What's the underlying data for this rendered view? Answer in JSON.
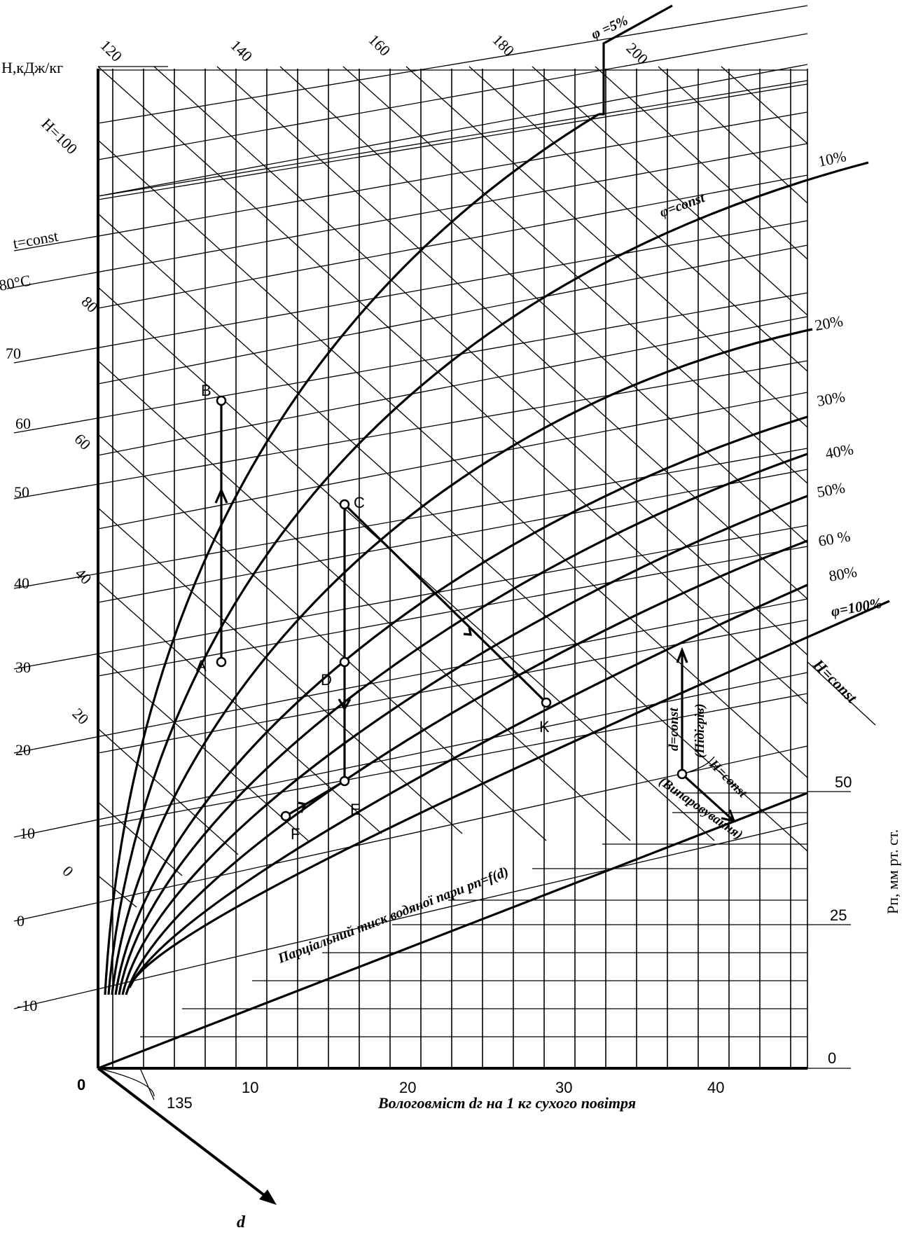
{
  "chart_data": {
    "type": "diagram",
    "diagram_kind": "H-d psychrometric chart",
    "y_axis": {
      "label": "H,кДж/кг",
      "enthalpy_ticks": [
        "Н=100",
        "80",
        "70",
        "60",
        "50",
        "40",
        "30",
        "20",
        "10",
        "0",
        "-10"
      ]
    },
    "x_axis": {
      "label": "Вологовміст  dг на 1 кг сухого повітря",
      "ticks": [
        "0",
        "10",
        "20",
        "30",
        "40"
      ],
      "range": [
        0,
        46
      ]
    },
    "oblique_axis": {
      "label": "d",
      "angle_label": "135"
    },
    "temperature_lines": {
      "label": "t=const",
      "unit_label": "80°C",
      "top_ticks": [
        "120",
        "140",
        "160",
        "180",
        "200"
      ],
      "side_ticks": [
        "80",
        "60",
        "40",
        "20",
        "0"
      ]
    },
    "humidity_curves": {
      "const_label": "φ=const",
      "labels": [
        "φ =5%",
        "10%",
        "20%",
        "30%",
        "40%",
        "50%",
        "60 %",
        "80%",
        "φ=100%"
      ]
    },
    "enthalpy_const_label": "Н=const",
    "vapour_pressure": {
      "axis_label": "Pп, мм рт. ст.",
      "ticks": [
        "0",
        "25",
        "50"
      ],
      "curve_label": "Парціальний тиск водяної пари pп=f(d)"
    },
    "legend_arrows": {
      "vertical_label": "d=const",
      "heating_label": "(Підігрів)",
      "diagonal_label": "Н=const",
      "evaporation_label": "(Випаровування)"
    },
    "points": [
      {
        "name": "A",
        "d": 8,
        "H": 30
      },
      {
        "name": "B",
        "d": 8,
        "H": 63
      },
      {
        "name": "C",
        "d": 16,
        "H": 49
      },
      {
        "name": "D",
        "d": 16,
        "H": 30
      },
      {
        "name": "E",
        "d": 16,
        "H": 16
      },
      {
        "name": "F",
        "d": 12,
        "H": 12
      },
      {
        "name": "K",
        "d": 29,
        "H": 26
      }
    ]
  }
}
